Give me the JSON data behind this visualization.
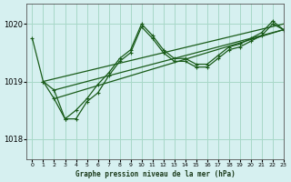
{
  "title": "Graphe pression niveau de la mer (hPa)",
  "background_color": "#d6f0f0",
  "grid_color": "#a8d8c8",
  "line_color": "#1a5c1a",
  "xlim": [
    -0.5,
    23
  ],
  "ylim": [
    1017.65,
    1020.35
  ],
  "yticks": [
    1018,
    1019,
    1020
  ],
  "xticks": [
    0,
    1,
    2,
    3,
    4,
    5,
    6,
    7,
    8,
    9,
    10,
    11,
    12,
    13,
    14,
    15,
    16,
    17,
    18,
    19,
    20,
    21,
    22,
    23
  ],
  "series": [
    {
      "x": [
        0,
        1,
        2,
        3,
        4,
        5,
        6,
        7,
        8,
        9,
        10,
        11,
        12,
        13,
        14,
        15,
        16,
        17,
        18,
        19,
        20,
        21,
        22,
        23
      ],
      "y": [
        1019.75,
        1019.0,
        1018.7,
        1018.35,
        1018.35,
        1018.65,
        1018.8,
        1019.1,
        1019.35,
        1019.5,
        1019.95,
        1019.75,
        1019.5,
        1019.35,
        1019.35,
        1019.25,
        1019.25,
        1019.4,
        1019.55,
        1019.6,
        1019.7,
        1019.8,
        1020.0,
        1019.9
      ]
    },
    {
      "x": [
        1,
        2,
        3,
        4,
        5,
        6,
        7,
        8,
        9,
        10,
        11,
        12,
        13,
        14,
        15,
        16,
        17,
        18,
        19,
        20,
        21,
        22,
        23
      ],
      "y": [
        1019.0,
        1018.85,
        1018.35,
        1018.5,
        1018.7,
        1018.95,
        1019.15,
        1019.4,
        1019.55,
        1020.0,
        1019.8,
        1019.55,
        1019.4,
        1019.4,
        1019.3,
        1019.3,
        1019.45,
        1019.6,
        1019.65,
        1019.75,
        1019.85,
        1020.05,
        1019.9
      ]
    },
    {
      "x": [
        1,
        23
      ],
      "y": [
        1019.0,
        1020.0
      ]
    },
    {
      "x": [
        2,
        23
      ],
      "y": [
        1018.7,
        1019.9
      ]
    },
    {
      "x": [
        2,
        23
      ],
      "y": [
        1018.85,
        1019.9
      ]
    }
  ]
}
